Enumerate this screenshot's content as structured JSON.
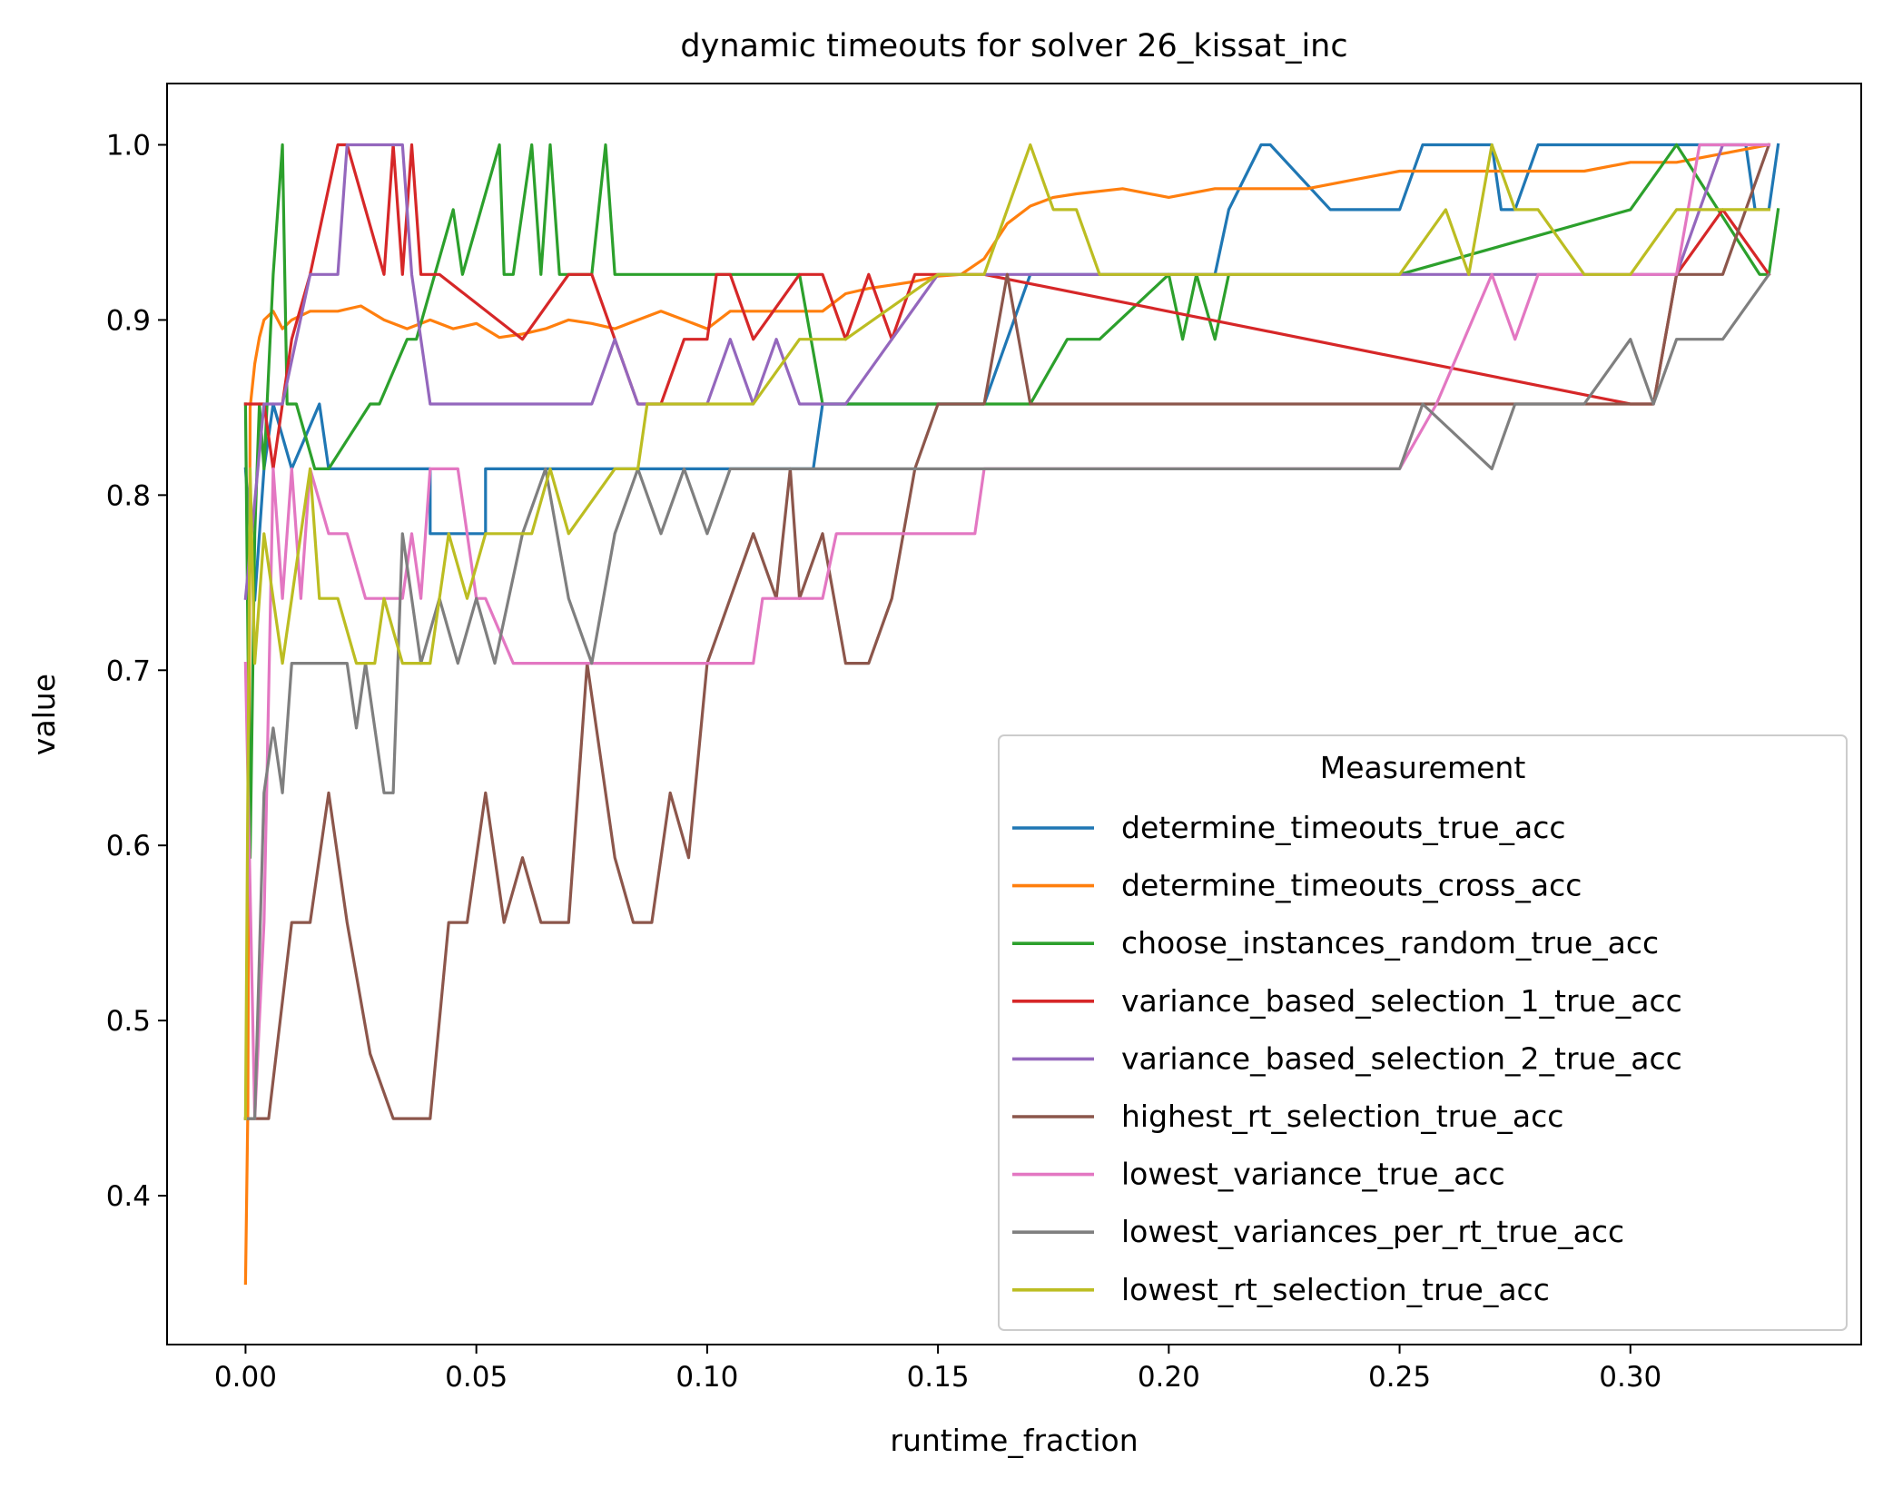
{
  "chart_data": {
    "type": "line",
    "title": "dynamic timeouts for solver 26_kissat_inc",
    "xlabel": "runtime_fraction",
    "ylabel": "value",
    "xlim": [
      -0.017,
      0.35
    ],
    "ylim": [
      0.315,
      1.035
    ],
    "x_ticks": [
      0.0,
      0.05,
      0.1,
      0.15,
      0.2,
      0.25,
      0.3
    ],
    "x_tick_labels": [
      "0.00",
      "0.05",
      "0.10",
      "0.15",
      "0.20",
      "0.25",
      "0.30"
    ],
    "y_ticks": [
      0.4,
      0.5,
      0.6,
      0.7,
      0.8,
      0.9,
      1.0
    ],
    "y_tick_labels": [
      "0.4",
      "0.5",
      "0.6",
      "0.7",
      "0.8",
      "0.9",
      "1.0"
    ],
    "grid": false,
    "legend": {
      "title": "Measurement",
      "placement": "lower-right"
    },
    "series": [
      {
        "name": "determine_timeouts_true_acc",
        "color": "#1f77b4",
        "x": [
          0.0,
          0.002,
          0.004,
          0.006,
          0.01,
          0.016,
          0.018,
          0.04,
          0.04,
          0.052,
          0.052,
          0.1,
          0.123,
          0.125,
          0.16,
          0.17,
          0.2,
          0.21,
          0.213,
          0.22,
          0.222,
          0.235,
          0.25,
          0.255,
          0.27,
          0.272,
          0.275,
          0.28,
          0.3,
          0.325,
          0.327,
          0.33,
          0.332
        ],
        "y": [
          0.815,
          0.74,
          0.815,
          0.852,
          0.815,
          0.852,
          0.815,
          0.815,
          0.778,
          0.778,
          0.815,
          0.815,
          0.815,
          0.852,
          0.852,
          0.926,
          0.926,
          0.926,
          0.963,
          1.0,
          1.0,
          0.963,
          0.963,
          1.0,
          1.0,
          0.963,
          0.963,
          1.0,
          1.0,
          1.0,
          0.963,
          0.963,
          1.0
        ]
      },
      {
        "name": "determine_timeouts_cross_acc",
        "color": "#ff7f0e",
        "x": [
          0.0,
          0.0005,
          0.001,
          0.002,
          0.003,
          0.004,
          0.006,
          0.008,
          0.01,
          0.014,
          0.02,
          0.025,
          0.03,
          0.035,
          0.04,
          0.045,
          0.05,
          0.055,
          0.06,
          0.065,
          0.07,
          0.075,
          0.08,
          0.085,
          0.09,
          0.095,
          0.1,
          0.105,
          0.11,
          0.115,
          0.12,
          0.125,
          0.13,
          0.135,
          0.14,
          0.145,
          0.15,
          0.155,
          0.16,
          0.165,
          0.17,
          0.175,
          0.18,
          0.19,
          0.2,
          0.21,
          0.22,
          0.23,
          0.24,
          0.25,
          0.26,
          0.27,
          0.28,
          0.29,
          0.3,
          0.31,
          0.32,
          0.33
        ],
        "y": [
          0.35,
          0.45,
          0.85,
          0.875,
          0.89,
          0.9,
          0.905,
          0.895,
          0.9,
          0.905,
          0.905,
          0.908,
          0.9,
          0.895,
          0.9,
          0.895,
          0.898,
          0.89,
          0.892,
          0.895,
          0.9,
          0.898,
          0.895,
          0.9,
          0.905,
          0.9,
          0.895,
          0.905,
          0.905,
          0.905,
          0.905,
          0.905,
          0.915,
          0.918,
          0.92,
          0.922,
          0.925,
          0.926,
          0.935,
          0.955,
          0.965,
          0.97,
          0.972,
          0.975,
          0.97,
          0.975,
          0.975,
          0.975,
          0.98,
          0.985,
          0.985,
          0.985,
          0.985,
          0.985,
          0.99,
          0.99,
          0.995,
          1.0
        ]
      },
      {
        "name": "choose_instances_random_true_acc",
        "color": "#2ca02c",
        "x": [
          0.0,
          0.001,
          0.002,
          0.003,
          0.004,
          0.006,
          0.008,
          0.009,
          0.011,
          0.015,
          0.018,
          0.027,
          0.029,
          0.035,
          0.037,
          0.045,
          0.047,
          0.055,
          0.056,
          0.058,
          0.062,
          0.064,
          0.066,
          0.068,
          0.075,
          0.078,
          0.08,
          0.1,
          0.12,
          0.125,
          0.14,
          0.16,
          0.17,
          0.178,
          0.185,
          0.2,
          0.203,
          0.206,
          0.21,
          0.213,
          0.216,
          0.25,
          0.3,
          0.31,
          0.328,
          0.33,
          0.332
        ],
        "y": [
          0.852,
          0.593,
          0.778,
          0.852,
          0.815,
          0.926,
          1.0,
          0.852,
          0.852,
          0.815,
          0.815,
          0.852,
          0.852,
          0.889,
          0.889,
          0.963,
          0.926,
          1.0,
          0.926,
          0.926,
          1.0,
          0.926,
          1.0,
          0.926,
          0.926,
          1.0,
          0.926,
          0.926,
          0.926,
          0.852,
          0.852,
          0.852,
          0.852,
          0.889,
          0.889,
          0.926,
          0.889,
          0.926,
          0.889,
          0.926,
          0.926,
          0.926,
          0.963,
          1.0,
          0.926,
          0.926,
          0.963
        ]
      },
      {
        "name": "variance_based_selection_1_true_acc",
        "color": "#d62728",
        "x": [
          0.0,
          0.004,
          0.006,
          0.01,
          0.014,
          0.02,
          0.022,
          0.03,
          0.032,
          0.034,
          0.036,
          0.038,
          0.04,
          0.042,
          0.06,
          0.07,
          0.075,
          0.08,
          0.085,
          0.09,
          0.095,
          0.1,
          0.102,
          0.105,
          0.11,
          0.12,
          0.125,
          0.13,
          0.135,
          0.14,
          0.145,
          0.15,
          0.16,
          0.3,
          0.305,
          0.31,
          0.32,
          0.33
        ],
        "y": [
          0.852,
          0.852,
          0.815,
          0.889,
          0.926,
          1.0,
          1.0,
          0.926,
          1.0,
          0.926,
          1.0,
          0.926,
          0.926,
          0.926,
          0.889,
          0.926,
          0.926,
          0.889,
          0.852,
          0.852,
          0.889,
          0.889,
          0.926,
          0.926,
          0.889,
          0.926,
          0.926,
          0.889,
          0.926,
          0.889,
          0.926,
          0.926,
          0.926,
          0.852,
          0.852,
          0.926,
          0.963,
          0.926
        ]
      },
      {
        "name": "variance_based_selection_2_true_acc",
        "color": "#9467bd",
        "x": [
          0.0,
          0.004,
          0.008,
          0.014,
          0.02,
          0.022,
          0.034,
          0.036,
          0.038,
          0.04,
          0.042,
          0.075,
          0.08,
          0.085,
          0.09,
          0.1,
          0.105,
          0.11,
          0.115,
          0.12,
          0.13,
          0.14,
          0.15,
          0.16,
          0.3,
          0.31,
          0.32,
          0.33
        ],
        "y": [
          0.741,
          0.852,
          0.852,
          0.926,
          0.926,
          1.0,
          1.0,
          0.926,
          0.889,
          0.852,
          0.852,
          0.852,
          0.889,
          0.852,
          0.852,
          0.852,
          0.889,
          0.852,
          0.889,
          0.852,
          0.852,
          0.889,
          0.926,
          0.926,
          0.926,
          0.926,
          1.0,
          1.0
        ]
      },
      {
        "name": "highest_rt_selection_true_acc",
        "color": "#8c564b",
        "x": [
          0.0,
          0.002,
          0.005,
          0.01,
          0.014,
          0.018,
          0.022,
          0.027,
          0.032,
          0.04,
          0.044,
          0.048,
          0.052,
          0.056,
          0.06,
          0.064,
          0.07,
          0.074,
          0.08,
          0.084,
          0.088,
          0.092,
          0.096,
          0.1,
          0.11,
          0.115,
          0.118,
          0.12,
          0.125,
          0.13,
          0.135,
          0.14,
          0.145,
          0.15,
          0.16,
          0.165,
          0.17,
          0.2,
          0.25,
          0.3,
          0.305,
          0.31,
          0.32,
          0.33
        ],
        "y": [
          0.444,
          0.444,
          0.444,
          0.556,
          0.556,
          0.63,
          0.556,
          0.481,
          0.444,
          0.444,
          0.556,
          0.556,
          0.63,
          0.556,
          0.593,
          0.556,
          0.556,
          0.704,
          0.593,
          0.556,
          0.556,
          0.63,
          0.593,
          0.704,
          0.778,
          0.741,
          0.815,
          0.741,
          0.778,
          0.704,
          0.704,
          0.741,
          0.815,
          0.852,
          0.852,
          0.926,
          0.852,
          0.852,
          0.852,
          0.852,
          0.852,
          0.926,
          0.926,
          1.0
        ]
      },
      {
        "name": "lowest_variance_true_acc",
        "color": "#e377c2",
        "x": [
          0.0,
          0.002,
          0.004,
          0.006,
          0.008,
          0.01,
          0.012,
          0.014,
          0.018,
          0.022,
          0.026,
          0.034,
          0.036,
          0.038,
          0.04,
          0.046,
          0.05,
          0.052,
          0.058,
          0.07,
          0.09,
          0.1,
          0.11,
          0.112,
          0.115,
          0.125,
          0.128,
          0.15,
          0.158,
          0.16,
          0.25,
          0.258,
          0.27,
          0.275,
          0.28,
          0.3,
          0.31,
          0.315,
          0.33
        ],
        "y": [
          0.704,
          0.444,
          0.556,
          0.815,
          0.741,
          0.815,
          0.741,
          0.815,
          0.778,
          0.778,
          0.741,
          0.741,
          0.778,
          0.741,
          0.815,
          0.815,
          0.741,
          0.741,
          0.704,
          0.704,
          0.704,
          0.704,
          0.704,
          0.741,
          0.741,
          0.741,
          0.778,
          0.778,
          0.778,
          0.815,
          0.815,
          0.852,
          0.926,
          0.889,
          0.926,
          0.926,
          0.926,
          1.0,
          1.0
        ]
      },
      {
        "name": "lowest_variances_per_rt_true_acc",
        "color": "#7f7f7f",
        "x": [
          0.0,
          0.002,
          0.004,
          0.006,
          0.008,
          0.01,
          0.012,
          0.014,
          0.018,
          0.022,
          0.024,
          0.026,
          0.03,
          0.032,
          0.034,
          0.036,
          0.038,
          0.042,
          0.046,
          0.05,
          0.054,
          0.06,
          0.065,
          0.07,
          0.075,
          0.08,
          0.085,
          0.09,
          0.095,
          0.1,
          0.105,
          0.15,
          0.2,
          0.25,
          0.255,
          0.27,
          0.275,
          0.29,
          0.3,
          0.305,
          0.31,
          0.32,
          0.33
        ],
        "y": [
          0.444,
          0.444,
          0.63,
          0.667,
          0.63,
          0.704,
          0.704,
          0.704,
          0.704,
          0.704,
          0.667,
          0.704,
          0.63,
          0.63,
          0.778,
          0.741,
          0.704,
          0.741,
          0.704,
          0.741,
          0.704,
          0.778,
          0.815,
          0.741,
          0.704,
          0.778,
          0.815,
          0.778,
          0.815,
          0.778,
          0.815,
          0.815,
          0.815,
          0.815,
          0.852,
          0.815,
          0.852,
          0.852,
          0.889,
          0.852,
          0.889,
          0.889,
          0.926
        ]
      },
      {
        "name": "lowest_rt_selection_true_acc",
        "color": "#bcbd22",
        "x": [
          0.0,
          0.001,
          0.002,
          0.004,
          0.006,
          0.008,
          0.01,
          0.012,
          0.014,
          0.016,
          0.02,
          0.024,
          0.028,
          0.03,
          0.034,
          0.04,
          0.044,
          0.048,
          0.052,
          0.056,
          0.062,
          0.066,
          0.07,
          0.08,
          0.085,
          0.087,
          0.09,
          0.1,
          0.11,
          0.12,
          0.125,
          0.13,
          0.15,
          0.16,
          0.165,
          0.17,
          0.175,
          0.18,
          0.185,
          0.19,
          0.21,
          0.22,
          0.25,
          0.26,
          0.265,
          0.27,
          0.275,
          0.28,
          0.29,
          0.3,
          0.31,
          0.32,
          0.33
        ],
        "y": [
          0.444,
          0.815,
          0.704,
          0.778,
          0.741,
          0.704,
          0.741,
          0.778,
          0.815,
          0.741,
          0.741,
          0.704,
          0.704,
          0.741,
          0.704,
          0.704,
          0.778,
          0.741,
          0.778,
          0.778,
          0.778,
          0.815,
          0.778,
          0.815,
          0.815,
          0.852,
          0.852,
          0.852,
          0.852,
          0.889,
          0.889,
          0.889,
          0.926,
          0.926,
          0.963,
          1.0,
          0.963,
          0.963,
          0.926,
          0.926,
          0.926,
          0.926,
          0.926,
          0.963,
          0.926,
          1.0,
          0.963,
          0.963,
          0.926,
          0.926,
          0.963,
          0.963,
          0.963
        ]
      }
    ]
  }
}
